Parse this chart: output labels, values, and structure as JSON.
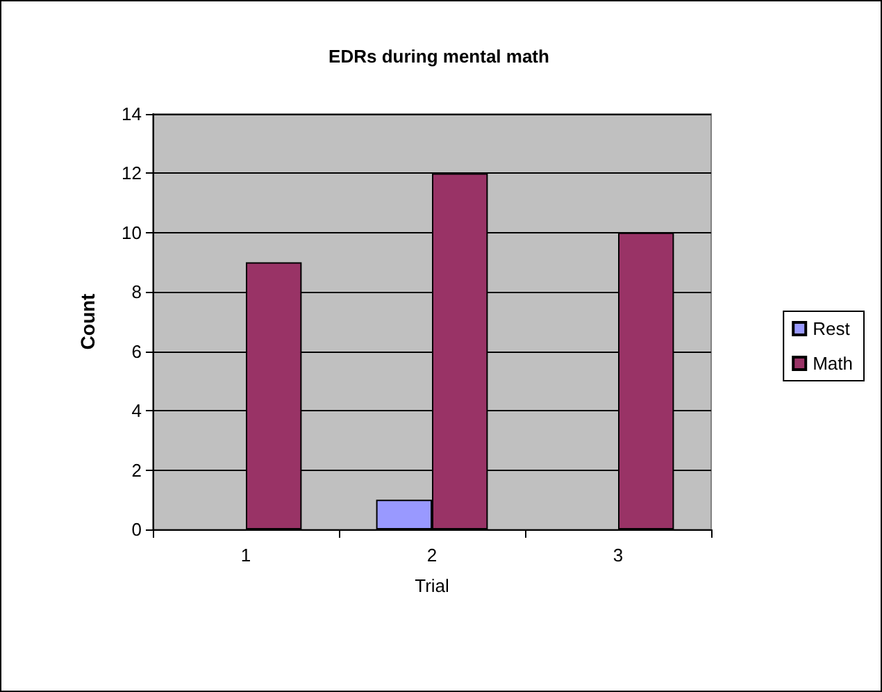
{
  "chart_data": {
    "type": "bar",
    "title": "EDRs during mental math",
    "xlabel": "Trial",
    "ylabel": "Count",
    "categories": [
      "1",
      "2",
      "3"
    ],
    "series": [
      {
        "name": "Rest",
        "color": "#9999ff",
        "values": [
          0,
          1,
          0
        ]
      },
      {
        "name": "Math",
        "color": "#993366",
        "values": [
          9,
          12,
          10
        ]
      }
    ],
    "ylim": [
      0,
      14
    ],
    "yticks": [
      0,
      2,
      4,
      6,
      8,
      10,
      12,
      14
    ],
    "grid": "y",
    "legend": "right"
  }
}
